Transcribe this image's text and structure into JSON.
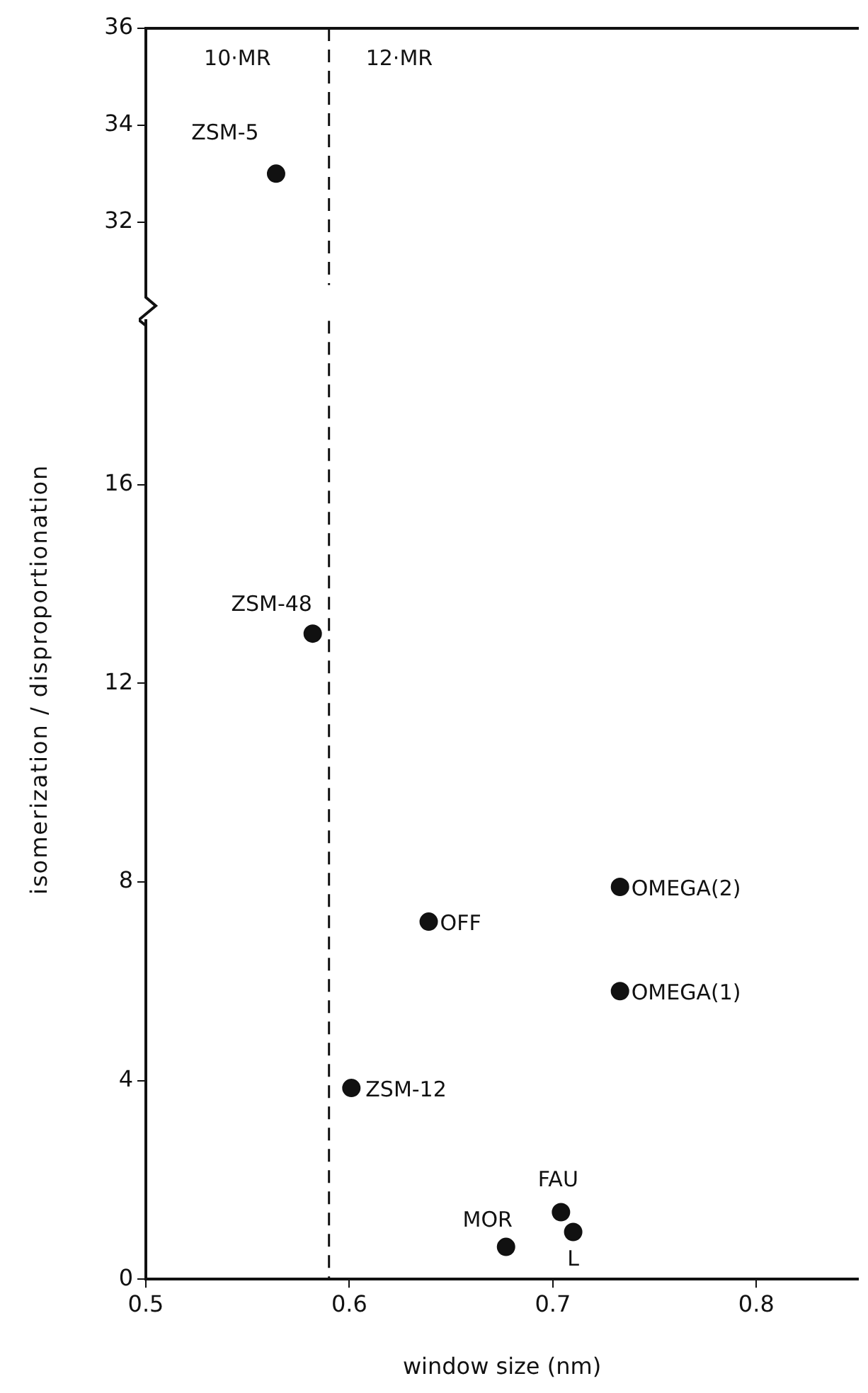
{
  "chart_data": [
    {
      "type": "scatter",
      "x": [
        0.564
      ],
      "values": [
        33
      ],
      "color": "#111111",
      "marker": "circle",
      "xlim": [
        0.5,
        0.85
      ],
      "ylim": [
        30.7,
        36
      ],
      "yticks": [
        32,
        34,
        36
      ],
      "tick_labels": "y",
      "grid": false,
      "legend": false,
      "ref_lines": [
        {
          "axis": "x",
          "value": 0.59,
          "line_style": "dashed"
        }
      ],
      "annotations": [
        "10·MR",
        "12·MR",
        {
          "text": "ZSM-5",
          "x": 0.564,
          "y": 33
        }
      ]
    },
    {
      "type": "scatter",
      "x": [
        0.582,
        0.639,
        0.733,
        0.733,
        0.601,
        0.704,
        0.71,
        0.677
      ],
      "values": [
        13,
        7.2,
        7.9,
        5.8,
        3.85,
        1.35,
        0.95,
        0.65
      ],
      "color": "#111111",
      "marker": "circle",
      "xlim": [
        0.5,
        0.85
      ],
      "ylim": [
        0,
        19.3
      ],
      "xticks": [
        0.5,
        0.6,
        0.7,
        0.8
      ],
      "yticks": [
        0,
        4,
        8,
        12,
        16
      ],
      "grid": false,
      "legend": false,
      "xlabel": "window size (nm)",
      "ylabel": "isomerization / disproportionation",
      "ref_lines": [
        {
          "axis": "x",
          "value": 0.59,
          "line_style": "dashed"
        }
      ],
      "annotations": [
        {
          "text": "ZSM-48",
          "x": 0.582,
          "y": 13
        },
        {
          "text": "OFF",
          "x": 0.639,
          "y": 7.2
        },
        {
          "text": "OMEGA(2)",
          "x": 0.733,
          "y": 7.9
        },
        {
          "text": "OMEGA(1)",
          "x": 0.733,
          "y": 5.8
        },
        {
          "text": "ZSM-12",
          "x": 0.601,
          "y": 3.85
        },
        {
          "text": "FAU",
          "x": 0.704,
          "y": 1.35
        },
        {
          "text": "L",
          "x": 0.71,
          "y": 0.95
        },
        {
          "text": "MOR",
          "x": 0.677,
          "y": 0.65
        }
      ]
    }
  ]
}
